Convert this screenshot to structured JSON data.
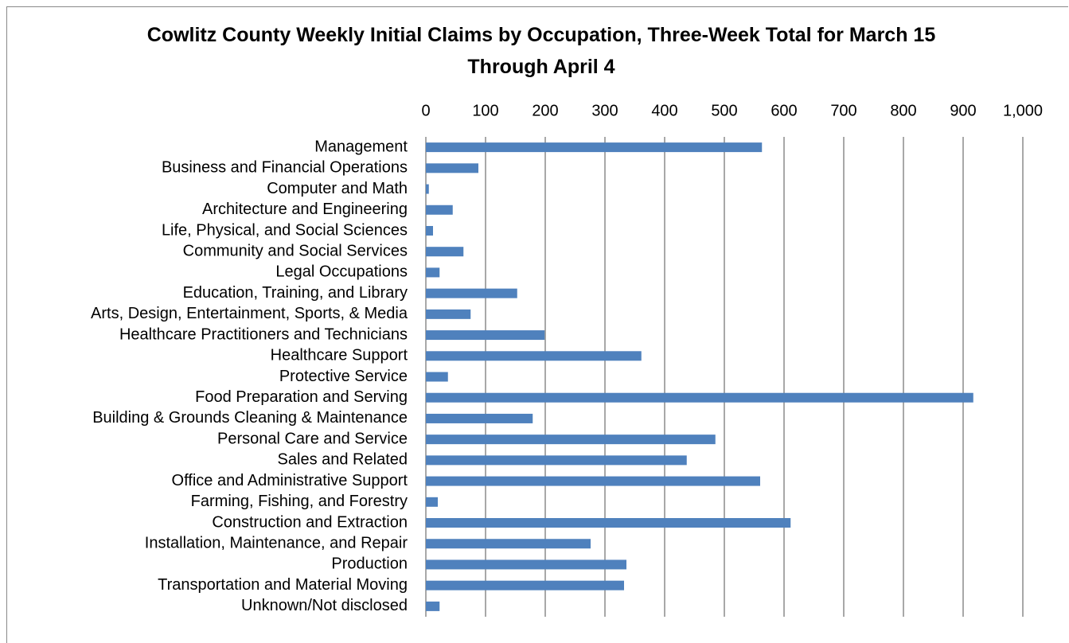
{
  "chart_data": {
    "type": "bar",
    "orientation": "horizontal",
    "title": "Cowlitz County Weekly Initial Claims by Occupation, Three-Week Total for March 15 Through April 4",
    "categories": [
      "Management",
      "Business and Financial Operations",
      "Computer and Math",
      "Architecture and Engineering",
      "Life, Physical, and Social Sciences",
      "Community and Social Services",
      "Legal Occupations",
      "Education, Training, and Library",
      "Arts, Design, Entertainment, Sports, & Media",
      "Healthcare Practitioners and Technicians",
      "Healthcare Support",
      "Protective Service",
      "Food Preparation and Serving",
      "Building & Grounds Cleaning & Maintenance",
      "Personal Care and Service",
      "Sales and Related",
      "Office and Administrative Support",
      "Farming, Fishing, and Forestry",
      "Construction and Extraction",
      "Installation, Maintenance, and Repair",
      "Production",
      "Transportation and Material Moving",
      "Unknown/Not disclosed"
    ],
    "values": [
      563,
      88,
      5,
      45,
      12,
      63,
      23,
      153,
      75,
      199,
      361,
      37,
      917,
      179,
      485,
      437,
      560,
      20,
      611,
      276,
      336,
      332,
      23
    ],
    "color": "#4f81bd",
    "xlim": [
      0,
      1000
    ],
    "xticks": [
      0,
      100,
      200,
      300,
      400,
      500,
      600,
      700,
      800,
      900,
      {
        "value": 1000,
        "label": "1,000"
      }
    ],
    "grid": true
  }
}
